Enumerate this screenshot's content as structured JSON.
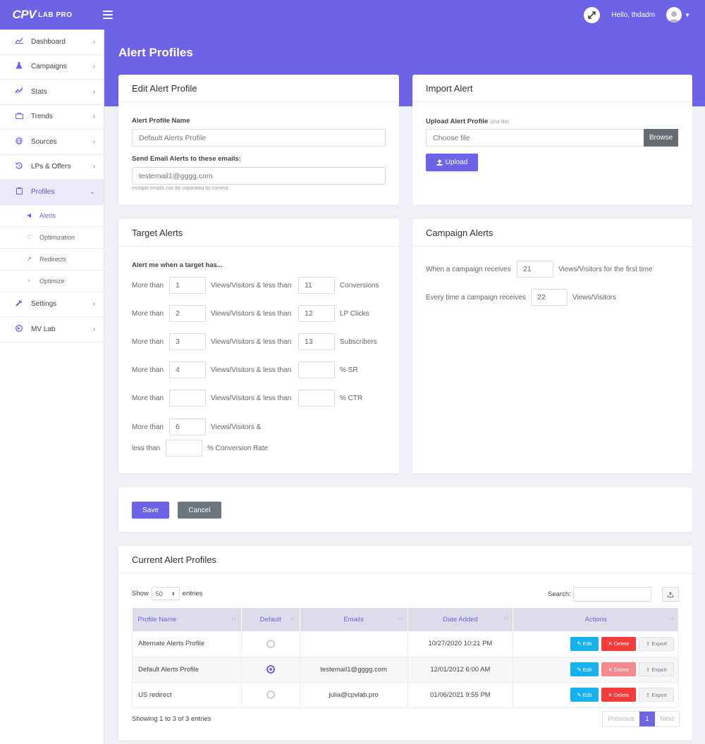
{
  "brand": {
    "logo_main": "CPV",
    "logo_sub": "LAB PRO"
  },
  "header": {
    "greeting": "Hello, thdadm"
  },
  "sidebar": {
    "items": [
      {
        "label": "Dashboard",
        "icon": "chart-line-icon"
      },
      {
        "label": "Campaigns",
        "icon": "flask-icon"
      },
      {
        "label": "Stats",
        "icon": "stats-icon"
      },
      {
        "label": "Trends",
        "icon": "briefcase-icon"
      },
      {
        "label": "Sources",
        "icon": "globe-icon"
      },
      {
        "label": "LPs & Offers",
        "icon": "history-icon"
      },
      {
        "label": "Profiles",
        "icon": "clipboard-icon"
      },
      {
        "label": "Settings",
        "icon": "wrench-icon"
      },
      {
        "label": "MV Lab",
        "icon": "mvlab-icon"
      }
    ],
    "sub_items": [
      {
        "label": "Alerts",
        "icon": "megaphone-icon"
      },
      {
        "label": "Optimization",
        "icon": "heart-icon"
      },
      {
        "label": "Redirects",
        "icon": "external-link-icon"
      },
      {
        "label": "Optimize",
        "icon": "bulb-icon"
      }
    ]
  },
  "page": {
    "title": "Alert Profiles"
  },
  "edit_profile": {
    "title": "Edit Alert Profile",
    "name_label": "Alert Profile Name",
    "name_value": "Default Alerts Profile",
    "emails_label": "Send Email Alerts to these emails:",
    "emails_value": "testemail1@gggg.com",
    "emails_hint": "multiple emails can be separated by comma"
  },
  "import_alert": {
    "title": "Import Alert",
    "upload_label": "Upload Alert Profile",
    "upload_hint": "(xml file)",
    "file_placeholder": "Choose file",
    "browse_label": "Browse",
    "upload_button": "Upload"
  },
  "target_alerts": {
    "title": "Target Alerts",
    "intro": "Alert me when a target has...",
    "more_than": "More than",
    "less_than_label": "Views/Visitors & less than",
    "rows": [
      {
        "min": "1",
        "max": "11",
        "metric": "Conversions"
      },
      {
        "min": "2",
        "max": "12",
        "metric": "LP Clicks"
      },
      {
        "min": "3",
        "max": "13",
        "metric": "Subscribers"
      },
      {
        "min": "4",
        "max": "",
        "metric": "% SR"
      },
      {
        "min": "",
        "max": "",
        "metric": "% CTR"
      }
    ],
    "last_row": {
      "min": "6",
      "mid_label": "Views/Visitors &",
      "less_than": "less than",
      "max": "",
      "metric": "% Conversion Rate"
    }
  },
  "campaign_alerts": {
    "title": "Campaign Alerts",
    "row1_prefix": "When a campaign receives",
    "row1_value": "21",
    "row1_suffix": "Views/Visitors for the first time",
    "row2_prefix": "Every time a campaign receives",
    "row2_value": "22",
    "row2_suffix": "Views/Visitors"
  },
  "form_actions": {
    "save": "Save",
    "cancel": "Cancel"
  },
  "current_profiles": {
    "title": "Current Alert Profiles",
    "show_label": "Show",
    "entries_value": "50",
    "entries_label": "entries",
    "search_label": "Search:",
    "columns": [
      "Profile Name",
      "Default",
      "Emails",
      "Date Added",
      "Actions"
    ],
    "rows": [
      {
        "name": "Alternate Alerts Profile",
        "default": false,
        "emails": "",
        "date": "10/27/2020 10:21 PM"
      },
      {
        "name": "Default Alerts Profile",
        "default": true,
        "emails": "testemail1@gggg.com",
        "date": "12/01/2012 6:00 AM"
      },
      {
        "name": "US redirect",
        "default": false,
        "emails": "julia@cpvlab.pro",
        "date": "01/06/2021 9:55 PM"
      }
    ],
    "action_labels": {
      "edit": "Edit",
      "delete": "Delete",
      "export": "Export"
    },
    "info": "Showing 1 to 3 of 3 entries",
    "pagination": {
      "previous": "Previous",
      "current": "1",
      "next": "Next"
    }
  },
  "colors": {
    "accent": "#6c63e6",
    "edit": "#15b2ee",
    "delete": "#f53b3b"
  }
}
